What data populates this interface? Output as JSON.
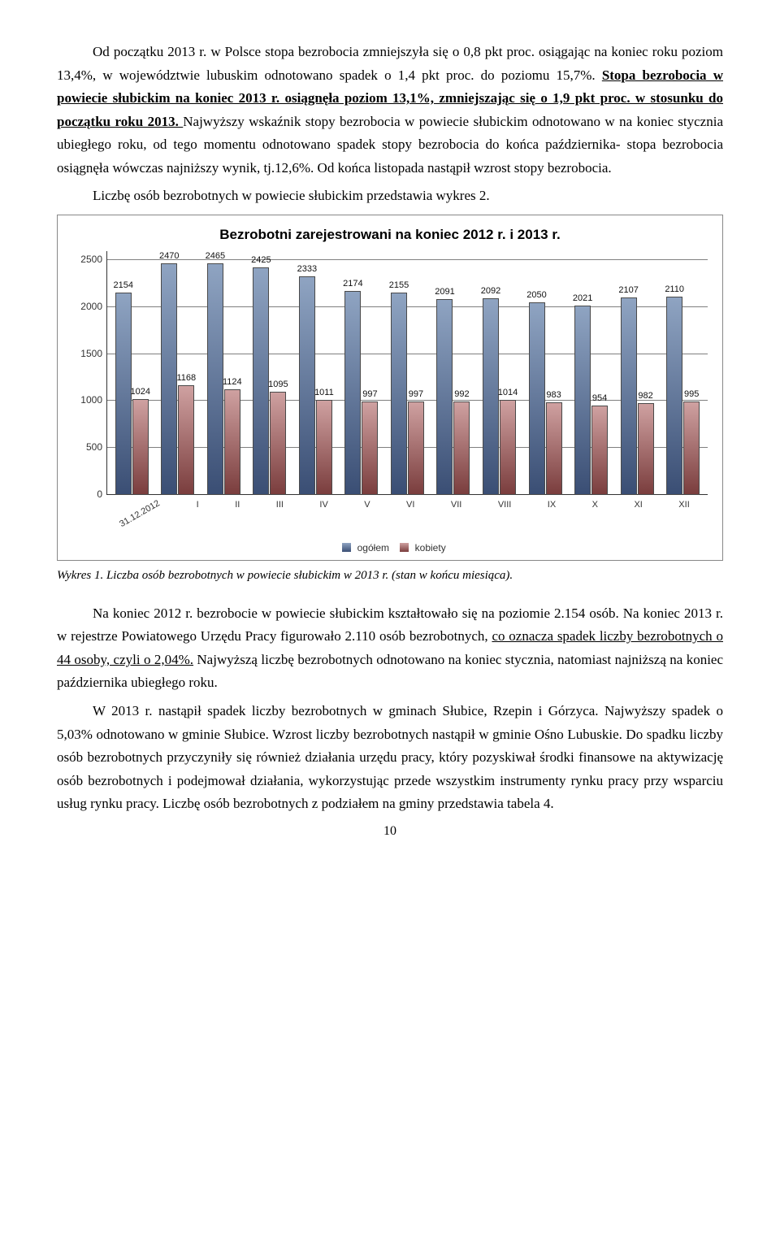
{
  "para1_a": "Od początku 2013 r. w Polsce stopa bezrobocia zmniejszyła się o 0,8 pkt proc. osiągając na koniec roku  poziom 13,4%,  w województwie lubuskim  odnotowano spadek o 1,4 pkt proc.  do poziomu 15,7%. ",
  "para1_b": "Stopa bezrobocia w powiecie słubickim na koniec 2013 r. osiągnęła poziom 13,1%, zmniejszając się o 1,9 pkt proc. w stosunku do początku roku 2013. ",
  "para1_c": "Najwyższy wskaźnik stopy bezrobocia w powiecie słubickim odnotowano w na koniec stycznia ubiegłego roku, od tego momentu odnotowano spadek stopy bezrobocia do końca października- stopa bezrobocia osiągnęła wówczas najniższy wynik, tj.12,6%. Od końca listopada nastąpił wzrost stopy bezrobocia.",
  "para2": "Liczbę osób bezrobotnych w powiecie słubickim przedstawia wykres 2.",
  "caption1": "Wykres 1. Liczba osób bezrobotnych w powiecie słubickim w 2013 r. (stan w końcu miesiąca).",
  "para3_a": "Na koniec 2012 r. bezrobocie w powiecie słubickim kształtowało się na poziomie 2.154 osób.  Na koniec 2013 r.  w rejestrze Powiatowego Urzędu Pracy figurowało 2.110 osób bezrobotnych, ",
  "para3_b": "co oznacza spadek liczby bezrobotnych o 44 osoby, czyli o 2,04%.",
  "para3_c": " Najwyższą liczbę bezrobotnych odnotowano na koniec stycznia, natomiast najniższą na koniec października ubiegłego roku.",
  "para4": "W 2013 r. nastąpił spadek liczby bezrobotnych w gminach Słubice, Rzepin i Górzyca. Najwyższy spadek o 5,03% odnotowano w gminie Słubice. Wzrost liczby bezrobotnych nastąpił w gminie Ośno Lubuskie.  Do spadku liczby osób bezrobotnych przyczyniły się również działania urzędu pracy, który pozyskiwał środki finansowe na aktywizację osób bezrobotnych i podejmował działania, wykorzystując przede wszystkim instrumenty rynku pracy przy wsparciu usług rynku pracy. Liczbę osób bezrobotnych z podziałem na gminy przedstawia tabela 4.",
  "page_number": "10",
  "chart": {
    "title": "Bezrobotni zarejestrowani na koniec 2012 r. i 2013 r.",
    "ymax": 2600,
    "yticks": [
      0,
      500,
      1000,
      1500,
      2000,
      2500
    ],
    "categories": [
      "31.12.2012",
      "I",
      "II",
      "III",
      "IV",
      "V",
      "VI",
      "VII",
      "VIII",
      "IX",
      "X",
      "XI",
      "XII"
    ],
    "ogolem": [
      2154,
      2470,
      2465,
      2425,
      2333,
      2174,
      2155,
      2091,
      2092,
      2050,
      2021,
      2107,
      2110
    ],
    "ogolem_labels": [
      "2154",
      "2470",
      "2465",
      "2425",
      "2333",
      "2174",
      "2155",
      "2091",
      "2092",
      "2050",
      "2021",
      "2107",
      "2110"
    ],
    "kobiety": [
      1024,
      1168,
      1124,
      1095,
      1011,
      997,
      997,
      992,
      1014,
      983,
      954,
      982,
      995
    ],
    "kobiety_labels": [
      "1024",
      "1168",
      "1124",
      "1095",
      "1011",
      "997",
      "997",
      "992",
      "1014",
      "983",
      "954",
      "982",
      "995"
    ],
    "colors": {
      "ogolem_top": "#8fa4c2",
      "ogolem_bottom": "#3a4e74",
      "kobiety_top": "#cfa1a1",
      "kobiety_bottom": "#7a3d3d",
      "bar_border": "#4a4a4a",
      "grid": "#7f7f7f"
    },
    "legend": {
      "a": "ogółem",
      "b": "kobiety"
    }
  }
}
